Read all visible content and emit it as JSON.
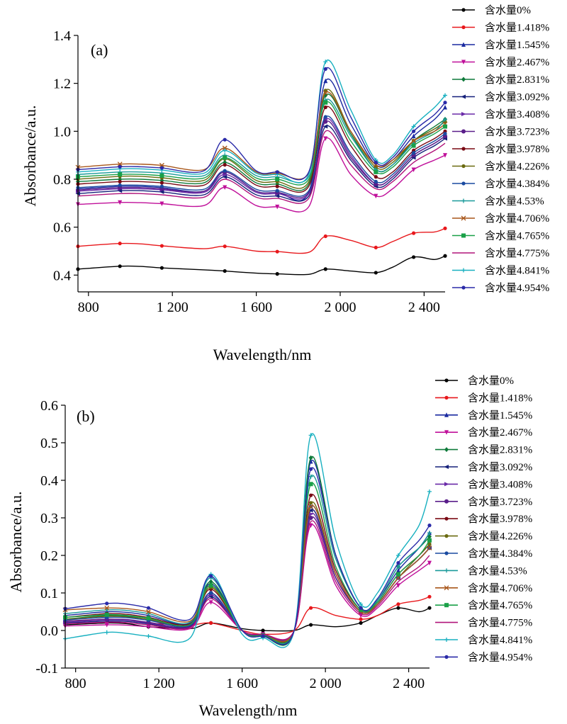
{
  "figure": {
    "colors": [
      "#000000",
      "#e8181c",
      "#1a2aa0",
      "#c0109a",
      "#0e7a3a",
      "#15207a",
      "#6a2aa8",
      "#5a1e8a",
      "#7a0a14",
      "#6a6a10",
      "#1a4aa0",
      "#1a9a9a",
      "#a8561a",
      "#1aa048",
      "#b0147a",
      "#18b0c0",
      "#2a2aa8"
    ],
    "markers": [
      "circle",
      "circle",
      "triangle",
      "triangle-down",
      "diamond",
      "triangle-left",
      "triangle-right",
      "hexagon",
      "circle",
      "circle",
      "circle",
      "plus",
      "cross",
      "square",
      "none",
      "plus",
      "circle"
    ]
  },
  "chart_data": [
    {
      "type": "line",
      "panel_label": "(a)",
      "xlabel": "Wavelength/nm",
      "ylabel": "Absorbance/a.u.",
      "xlim": [
        750,
        2500
      ],
      "ylim": [
        0.33,
        1.4
      ],
      "xticks": [
        800,
        1200,
        1600,
        2000,
        2400
      ],
      "xtick_labels": [
        "800",
        "1 200",
        "1 600",
        "2 000",
        "2 400"
      ],
      "yticks": [
        0.4,
        0.6,
        0.8,
        1.0,
        1.2,
        1.4
      ],
      "ytick_labels": [
        "0.4",
        "0.6",
        "0.8",
        "1.0",
        "1.2",
        "1.4"
      ],
      "legend_position": "right",
      "series": [
        {
          "name": "含水量0%",
          "values": [
            0.425,
            0.437,
            0.436,
            0.43,
            0.422,
            0.417,
            0.408,
            0.405,
            0.403,
            0.425,
            0.417,
            0.41,
            0.433,
            0.475,
            0.465,
            0.48
          ]
        },
        {
          "name": "含水量1.418%",
          "values": [
            0.52,
            0.532,
            0.53,
            0.522,
            0.51,
            0.52,
            0.5,
            0.498,
            0.495,
            0.562,
            0.545,
            0.515,
            0.54,
            0.575,
            0.58,
            0.595
          ]
        },
        {
          "name": "含水量1.545%",
          "values": [
            0.76,
            0.77,
            0.77,
            0.765,
            0.75,
            0.83,
            0.75,
            0.745,
            0.745,
            1.21,
            1.03,
            0.86,
            0.88,
            0.98,
            1.05,
            1.1
          ]
        },
        {
          "name": "含水量2.467%",
          "values": [
            0.695,
            0.703,
            0.702,
            0.698,
            0.69,
            0.766,
            0.69,
            0.685,
            0.685,
            0.97,
            0.82,
            0.73,
            0.76,
            0.84,
            0.88,
            0.9
          ]
        },
        {
          "name": "含水量2.831%",
          "values": [
            0.79,
            0.8,
            0.8,
            0.795,
            0.785,
            0.87,
            0.785,
            0.78,
            0.78,
            1.15,
            0.99,
            0.84,
            0.86,
            0.96,
            1.02,
            1.05
          ]
        },
        {
          "name": "含水量3.092%",
          "values": [
            0.74,
            0.752,
            0.752,
            0.747,
            0.735,
            0.81,
            0.735,
            0.73,
            0.73,
            1.02,
            0.88,
            0.77,
            0.8,
            0.89,
            0.94,
            0.97
          ]
        },
        {
          "name": "含水量3.408%",
          "values": [
            0.75,
            0.76,
            0.76,
            0.756,
            0.745,
            0.82,
            0.745,
            0.74,
            0.74,
            1.05,
            0.9,
            0.78,
            0.81,
            0.9,
            0.95,
            0.98
          ]
        },
        {
          "name": "含水量3.723%",
          "values": [
            0.755,
            0.765,
            0.765,
            0.76,
            0.75,
            0.83,
            0.75,
            0.745,
            0.745,
            1.04,
            0.89,
            0.78,
            0.81,
            0.9,
            0.95,
            0.98
          ]
        },
        {
          "name": "含水量3.978%",
          "values": [
            0.78,
            0.79,
            0.79,
            0.785,
            0.775,
            0.86,
            0.775,
            0.77,
            0.77,
            1.1,
            0.94,
            0.81,
            0.83,
            0.92,
            0.97,
            1.0
          ]
        },
        {
          "name": "含水量4.226%",
          "values": [
            0.8,
            0.812,
            0.812,
            0.806,
            0.795,
            0.885,
            0.795,
            0.79,
            0.79,
            1.17,
            1.0,
            0.85,
            0.87,
            0.96,
            1.01,
            1.04
          ]
        },
        {
          "name": "含水量4.384%",
          "values": [
            0.765,
            0.775,
            0.775,
            0.77,
            0.758,
            0.835,
            0.758,
            0.752,
            0.752,
            1.06,
            0.91,
            0.79,
            0.82,
            0.91,
            0.96,
            0.99
          ]
        },
        {
          "name": "含水量4.53%",
          "values": [
            0.82,
            0.83,
            0.83,
            0.826,
            0.815,
            0.9,
            0.815,
            0.81,
            0.81,
            1.13,
            0.98,
            0.84,
            0.86,
            0.95,
            1.0,
            1.05
          ]
        },
        {
          "name": "含水量4.706%",
          "values": [
            0.85,
            0.863,
            0.863,
            0.858,
            0.84,
            0.93,
            0.83,
            0.825,
            0.825,
            1.16,
            1.0,
            0.86,
            0.88,
            0.96,
            1.0,
            1.03
          ]
        },
        {
          "name": "含水量4.765%",
          "values": [
            0.81,
            0.82,
            0.82,
            0.815,
            0.805,
            0.89,
            0.805,
            0.8,
            0.8,
            1.12,
            0.96,
            0.83,
            0.85,
            0.94,
            0.99,
            1.02
          ]
        },
        {
          "name": "含水量4.775%",
          "values": [
            0.73,
            0.74,
            0.74,
            0.735,
            0.725,
            0.8,
            0.725,
            0.72,
            0.72,
            1.0,
            0.86,
            0.76,
            0.79,
            0.87,
            0.92,
            0.95
          ]
        },
        {
          "name": "含水量4.841%",
          "values": [
            0.83,
            0.843,
            0.843,
            0.838,
            0.825,
            0.92,
            0.825,
            0.82,
            0.82,
            1.29,
            1.09,
            0.88,
            0.9,
            1.02,
            1.1,
            1.15
          ]
        },
        {
          "name": "含水量4.954%",
          "values": [
            0.84,
            0.852,
            0.852,
            0.847,
            0.835,
            0.965,
            0.835,
            0.83,
            0.83,
            1.26,
            1.06,
            0.87,
            0.89,
            1.0,
            1.07,
            1.12
          ]
        }
      ],
      "x": [
        750,
        950,
        1050,
        1150,
        1350,
        1450,
        1600,
        1700,
        1850,
        1930,
        2050,
        2170,
        2250,
        2350,
        2450,
        2500
      ]
    },
    {
      "type": "line",
      "panel_label": "(b)",
      "xlabel": "Wavelength/nm",
      "ylabel": "Absorbance/a.u.",
      "xlim": [
        750,
        2500
      ],
      "ylim": [
        -0.1,
        0.6
      ],
      "xticks": [
        800,
        1200,
        1600,
        2000,
        2400
      ],
      "xtick_labels": [
        "800",
        "1 200",
        "1 600",
        "2 000",
        "2 400"
      ],
      "yticks": [
        -0.1,
        0.0,
        0.1,
        0.2,
        0.3,
        0.4,
        0.5,
        0.6
      ],
      "ytick_labels": [
        "-0.1",
        "0.0",
        "0.1",
        "0.2",
        "0.3",
        "0.4",
        "0.5",
        "0.6"
      ],
      "legend_position": "right",
      "series": [
        {
          "name": "含水量0%",
          "values": [
            0.015,
            0.02,
            0.018,
            0.01,
            0.005,
            0.02,
            0.005,
            0.0,
            0.0,
            0.015,
            0.01,
            0.02,
            0.04,
            0.06,
            0.05,
            0.06
          ]
        },
        {
          "name": "含水量1.418%",
          "values": [
            0.025,
            0.03,
            0.028,
            0.02,
            0.015,
            0.02,
            0.0,
            -0.01,
            0.0,
            0.06,
            0.04,
            0.03,
            0.04,
            0.07,
            0.08,
            0.09
          ]
        },
        {
          "name": "含水量1.545%",
          "values": [
            0.04,
            0.05,
            0.048,
            0.04,
            0.02,
            0.125,
            0.0,
            -0.015,
            0.0,
            0.45,
            0.2,
            0.06,
            0.08,
            0.16,
            0.22,
            0.26
          ]
        },
        {
          "name": "含水量2.467%",
          "values": [
            0.012,
            0.015,
            0.014,
            0.01,
            0.005,
            0.075,
            0.0,
            -0.01,
            0.0,
            0.28,
            0.12,
            0.04,
            0.06,
            0.12,
            0.16,
            0.18
          ]
        },
        {
          "name": "含水量2.831%",
          "values": [
            0.03,
            0.04,
            0.038,
            0.03,
            0.015,
            0.13,
            0.0,
            -0.015,
            0.0,
            0.46,
            0.2,
            0.06,
            0.08,
            0.17,
            0.22,
            0.25
          ]
        },
        {
          "name": "含水量3.092%",
          "values": [
            0.02,
            0.025,
            0.024,
            0.018,
            0.01,
            0.09,
            0.0,
            -0.012,
            0.0,
            0.32,
            0.14,
            0.05,
            0.07,
            0.14,
            0.19,
            0.22
          ]
        },
        {
          "name": "含水量3.408%",
          "values": [
            0.022,
            0.028,
            0.027,
            0.02,
            0.012,
            0.095,
            0.0,
            -0.012,
            0.0,
            0.31,
            0.14,
            0.05,
            0.07,
            0.14,
            0.19,
            0.22
          ]
        },
        {
          "name": "含水量3.723%",
          "values": [
            0.025,
            0.03,
            0.029,
            0.022,
            0.012,
            0.1,
            0.0,
            -0.012,
            0.0,
            0.3,
            0.14,
            0.05,
            0.07,
            0.14,
            0.19,
            0.22
          ]
        },
        {
          "name": "含水量3.978%",
          "values": [
            0.035,
            0.045,
            0.043,
            0.035,
            0.018,
            0.11,
            0.0,
            -0.013,
            0.0,
            0.36,
            0.16,
            0.055,
            0.075,
            0.15,
            0.2,
            0.23
          ]
        },
        {
          "name": "含水量4.226%",
          "values": [
            0.03,
            0.038,
            0.036,
            0.03,
            0.015,
            0.115,
            0.0,
            -0.013,
            0.0,
            0.34,
            0.15,
            0.05,
            0.07,
            0.14,
            0.2,
            0.23
          ]
        },
        {
          "name": "含水量4.384%",
          "values": [
            0.028,
            0.035,
            0.034,
            0.027,
            0.014,
            0.1,
            0.0,
            -0.012,
            0.0,
            0.33,
            0.15,
            0.05,
            0.07,
            0.14,
            0.19,
            0.22
          ]
        },
        {
          "name": "含水量4.53%",
          "values": [
            0.045,
            0.055,
            0.053,
            0.045,
            0.022,
            0.14,
            0.0,
            -0.015,
            0.0,
            0.41,
            0.19,
            0.06,
            0.08,
            0.17,
            0.22,
            0.26
          ]
        },
        {
          "name": "含水量4.706%",
          "values": [
            0.055,
            0.06,
            0.058,
            0.05,
            0.025,
            0.12,
            0.0,
            -0.013,
            0.0,
            0.33,
            0.15,
            0.05,
            0.07,
            0.14,
            0.19,
            0.22
          ]
        },
        {
          "name": "含水量4.765%",
          "values": [
            0.035,
            0.042,
            0.04,
            0.033,
            0.016,
            0.12,
            0.0,
            -0.013,
            0.0,
            0.39,
            0.17,
            0.055,
            0.075,
            0.15,
            0.2,
            0.24
          ]
        },
        {
          "name": "含水量4.775%",
          "values": [
            0.018,
            0.022,
            0.021,
            0.015,
            0.008,
            0.085,
            0.0,
            -0.01,
            0.0,
            0.29,
            0.13,
            0.045,
            0.065,
            0.13,
            0.17,
            0.2
          ]
        },
        {
          "name": "含水量4.841%",
          "values": [
            -0.022,
            -0.005,
            -0.008,
            -0.015,
            -0.02,
            0.15,
            -0.01,
            -0.02,
            0.0,
            0.52,
            0.24,
            0.07,
            0.1,
            0.2,
            0.28,
            0.37
          ]
        },
        {
          "name": "含水量4.954%",
          "values": [
            0.058,
            0.072,
            0.07,
            0.06,
            0.03,
            0.145,
            0.0,
            -0.015,
            0.0,
            0.43,
            0.2,
            0.06,
            0.085,
            0.18,
            0.24,
            0.28
          ]
        }
      ],
      "x": [
        750,
        950,
        1050,
        1150,
        1350,
        1450,
        1600,
        1700,
        1850,
        1930,
        2050,
        2170,
        2250,
        2350,
        2450,
        2500
      ]
    }
  ]
}
